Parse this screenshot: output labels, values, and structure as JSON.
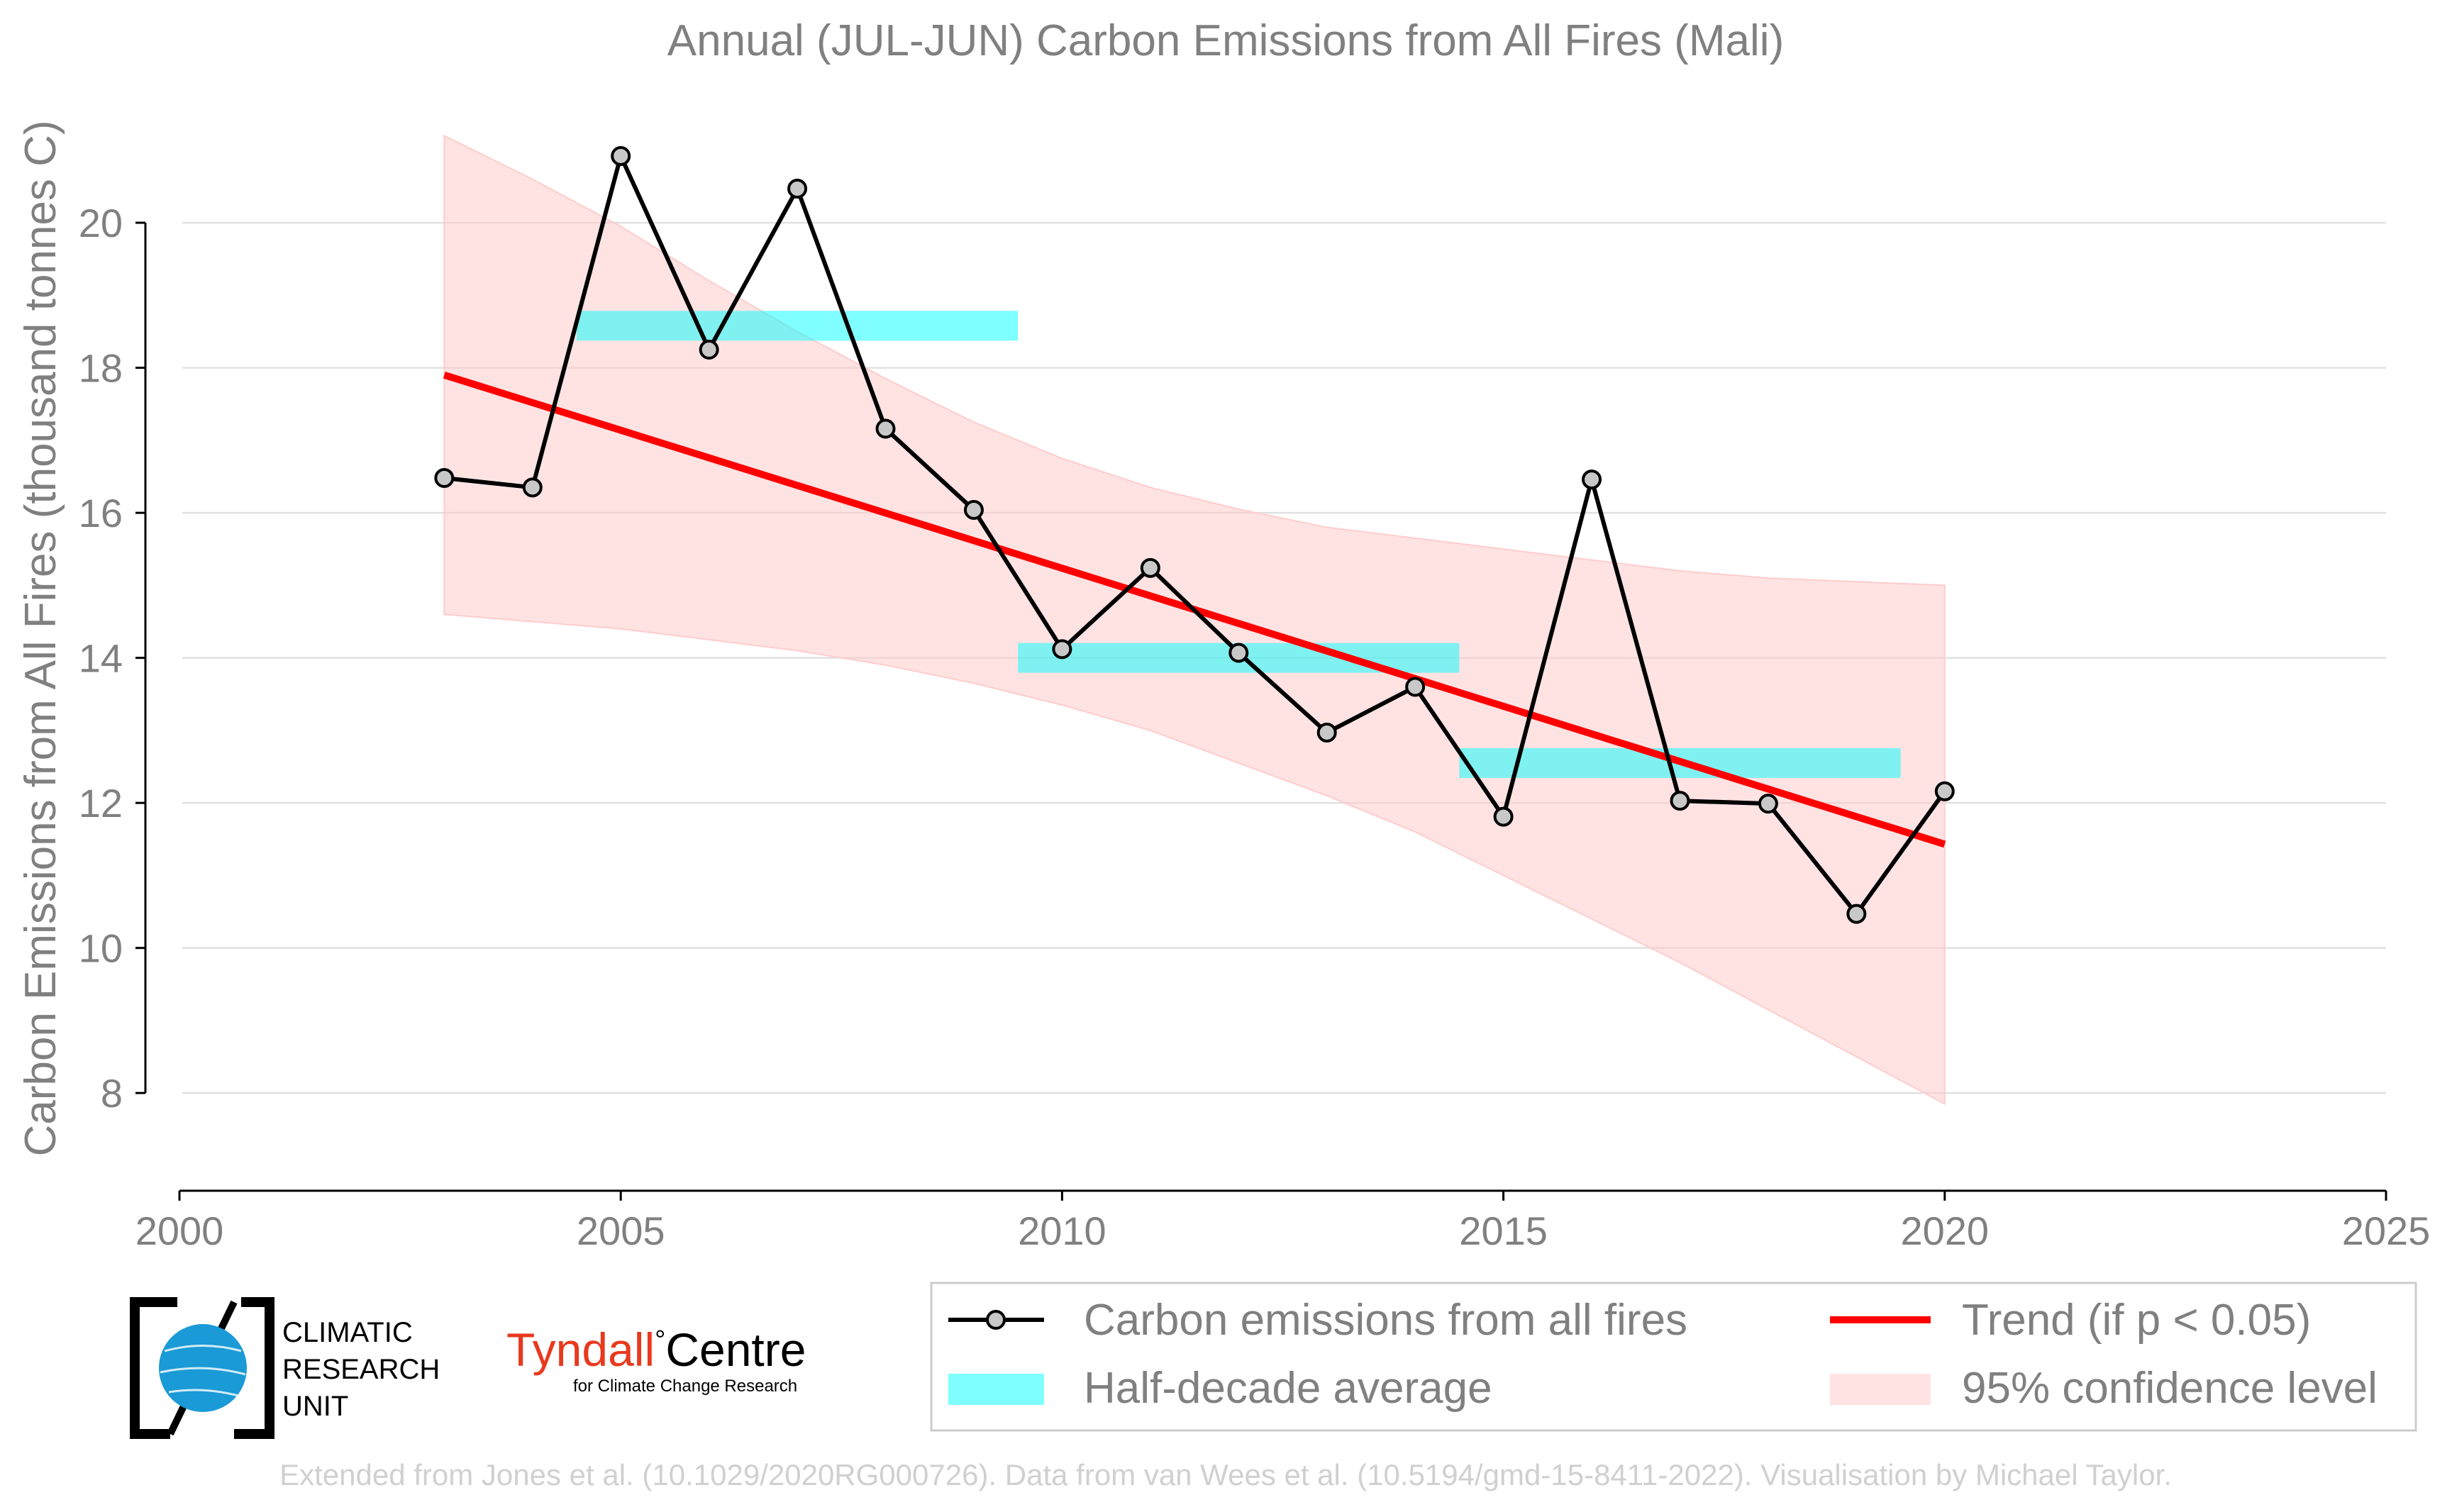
{
  "colors": {
    "series": "#000000",
    "marker_fill": "#c8c8c8",
    "trend": "#ff0000",
    "halfdecade": "#00ffff",
    "confidence": "#ffcccc",
    "grid": "#e0e0e0",
    "text": "#808080",
    "tyndall_red": "#e8391e"
  },
  "logos": {
    "cru": [
      "CLIMATIC",
      "RESEARCH",
      "UNIT"
    ],
    "tyndall_main": "Tyndall",
    "tyndall_degree": "°",
    "tyndall_centre": "Centre",
    "tyndall_sub": "for Climate Change Research"
  },
  "footer": "Extended from Jones et al. (10.1029/2020RG000726). Data from van Wees et al. (10.5194/gmd-15-8411-2022). Visualisation by Michael Taylor.",
  "chart_data": {
    "type": "line",
    "title": "Annual (JUL-JUN) Carbon Emissions from All Fires (Mali)",
    "xlabel": "",
    "ylabel": "Carbon Emissions from All Fires (thousand tonnes C)",
    "xlim": [
      2000,
      2025
    ],
    "ylim": [
      7.2,
      21.8
    ],
    "xticks": [
      2000,
      2005,
      2010,
      2015,
      2020,
      2025
    ],
    "yticks": [
      8,
      10,
      12,
      14,
      16,
      18,
      20
    ],
    "grid": "horizontal",
    "legend_position": "bottom-right",
    "series": [
      {
        "name": "Carbon emissions from all fires",
        "x": [
          2003,
          2004,
          2005,
          2006,
          2007,
          2008,
          2009,
          2010,
          2011,
          2012,
          2013,
          2014,
          2015,
          2016,
          2017,
          2018,
          2019,
          2020
        ],
        "values": [
          16.48,
          16.35,
          20.92,
          18.25,
          20.47,
          17.16,
          16.04,
          14.12,
          15.24,
          14.07,
          12.97,
          13.6,
          11.81,
          16.46,
          12.03,
          11.99,
          10.47,
          12.16
        ]
      }
    ],
    "trend": {
      "name": "Trend (if p < 0.05)",
      "x": [
        2003,
        2020
      ],
      "y": [
        17.9,
        11.43
      ]
    },
    "half_decade_average": {
      "name": "Half-decade average",
      "segments": [
        {
          "x0": 2004.5,
          "x1": 2009.5,
          "y": 18.58
        },
        {
          "x0": 2009.5,
          "x1": 2014.5,
          "y": 14.0
        },
        {
          "x0": 2014.5,
          "x1": 2019.5,
          "y": 12.55
        }
      ]
    },
    "confidence_band": {
      "name": "95% confidence level",
      "x": [
        2003,
        2004,
        2005,
        2006,
        2007,
        2008,
        2009,
        2010,
        2011,
        2012,
        2013,
        2014,
        2015,
        2016,
        2017,
        2018,
        2019,
        2020
      ],
      "upper": [
        21.2,
        20.6,
        19.95,
        19.2,
        18.5,
        17.85,
        17.25,
        16.75,
        16.35,
        16.05,
        15.8,
        15.65,
        15.5,
        15.35,
        15.2,
        15.1,
        15.05,
        15.0
      ],
      "lower": [
        14.6,
        14.5,
        14.4,
        14.25,
        14.1,
        13.9,
        13.65,
        13.35,
        13.0,
        12.55,
        12.1,
        11.6,
        11.0,
        10.4,
        9.8,
        9.15,
        8.5,
        7.85
      ]
    }
  }
}
